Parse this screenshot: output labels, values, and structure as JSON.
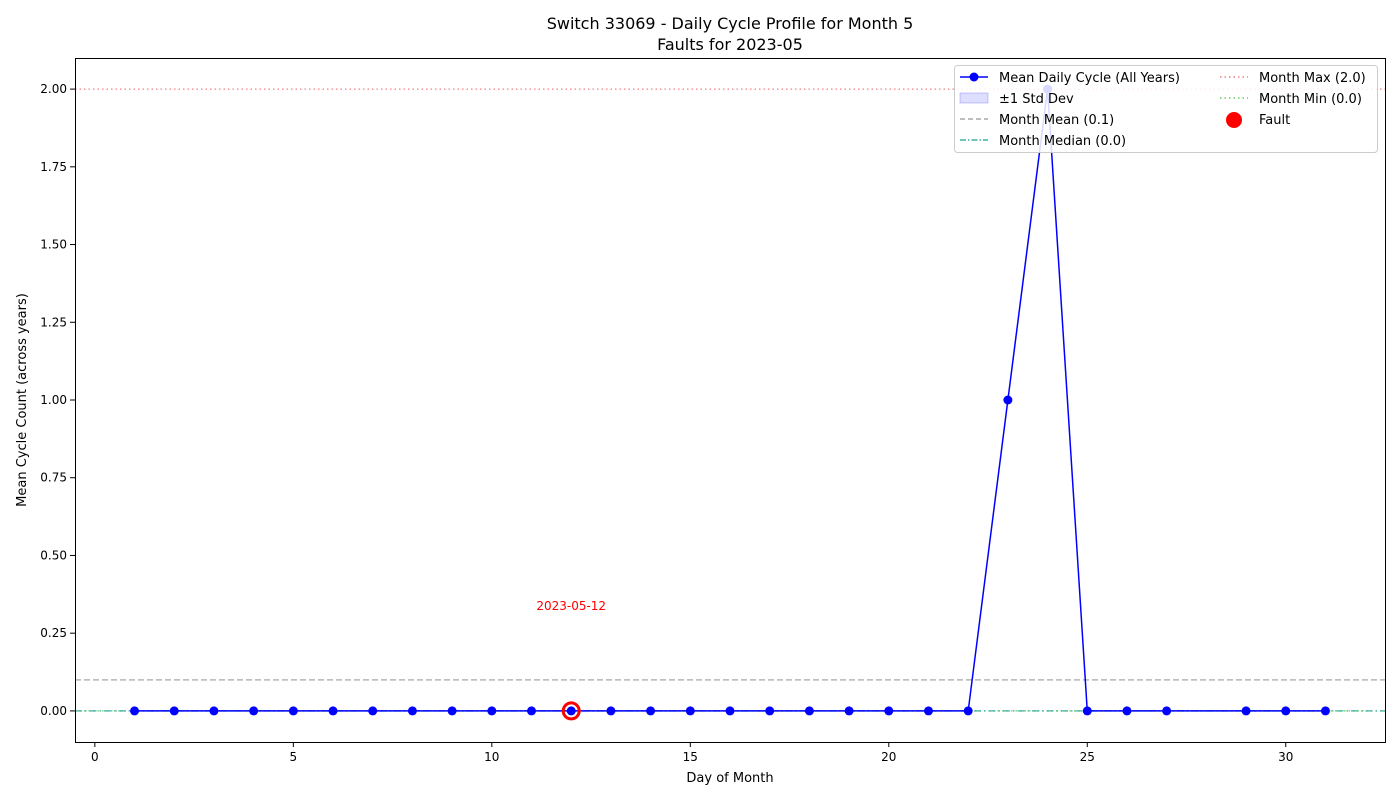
{
  "chart_data": {
    "type": "line",
    "title": "Switch 33069 - Daily Cycle Profile for Month 5",
    "subtitle": "Faults for 2023-05",
    "xlabel": "Day of Month",
    "ylabel": "Mean Cycle Count (across years)",
    "xlim": [
      -0.5,
      32.5
    ],
    "ylim": [
      -0.1,
      2.1
    ],
    "x_ticks": [
      0,
      5,
      10,
      15,
      20,
      25,
      30
    ],
    "x_tick_labels": [
      "0",
      "5",
      "10",
      "15",
      "20",
      "25",
      "30"
    ],
    "y_ticks": [
      0,
      0.25,
      0.5,
      0.75,
      1.0,
      1.25,
      1.5,
      1.75,
      2.0
    ],
    "y_tick_labels": [
      "0.00",
      "0.25",
      "0.50",
      "0.75",
      "1.00",
      "1.25",
      "1.50",
      "1.75",
      "2.00"
    ],
    "grid": false,
    "series": [
      {
        "name": "Mean Daily Cycle (All Years)",
        "color": "#0000ff",
        "points": [
          [
            1,
            0
          ],
          [
            2,
            0
          ],
          [
            3,
            0
          ],
          [
            4,
            0
          ],
          [
            5,
            0
          ],
          [
            6,
            0
          ],
          [
            7,
            0
          ],
          [
            8,
            0
          ],
          [
            9,
            0
          ],
          [
            10,
            0
          ],
          [
            11,
            0
          ],
          [
            12,
            0
          ],
          [
            13,
            0
          ],
          [
            14,
            0
          ],
          [
            15,
            0
          ],
          [
            16,
            0
          ],
          [
            17,
            0
          ],
          [
            18,
            0
          ],
          [
            19,
            0
          ],
          [
            20,
            0
          ],
          [
            21,
            0
          ],
          [
            22,
            0
          ],
          [
            23,
            1
          ],
          [
            24,
            2
          ],
          [
            25,
            0
          ],
          [
            26,
            0
          ],
          [
            27,
            0
          ],
          [
            29,
            0
          ],
          [
            30,
            0
          ],
          [
            31,
            0
          ]
        ]
      }
    ],
    "std_band": {
      "name": "±1 Std Dev",
      "color": "#0000ff"
    },
    "reference_lines": [
      {
        "name": "Month Mean (0.1)",
        "value": 0.1,
        "color": "#a9a9a9",
        "style": "dashed"
      },
      {
        "name": "Month Median (0.0)",
        "value": 0.0,
        "color": "#40b0a0",
        "style": "dashdot"
      },
      {
        "name": "Month Max (2.0)",
        "value": 2.0,
        "color": "#f08080",
        "style": "dotted"
      },
      {
        "name": "Month Min (0.0)",
        "value": 0.0,
        "color": "#66cc66",
        "style": "dotted"
      }
    ],
    "faults": [
      {
        "name": "Fault",
        "day": 12,
        "value": 0,
        "label": "2023-05-12",
        "color": "#ff0000"
      }
    ],
    "legend": {
      "placement": "top-right",
      "col1": [
        "Mean Daily Cycle (All Years)",
        "±1 Std Dev",
        "Month Mean (0.1)",
        "Month Median (0.0)"
      ],
      "col2": [
        "Month Max (2.0)",
        "Month Min (0.0)",
        "Fault"
      ]
    }
  }
}
